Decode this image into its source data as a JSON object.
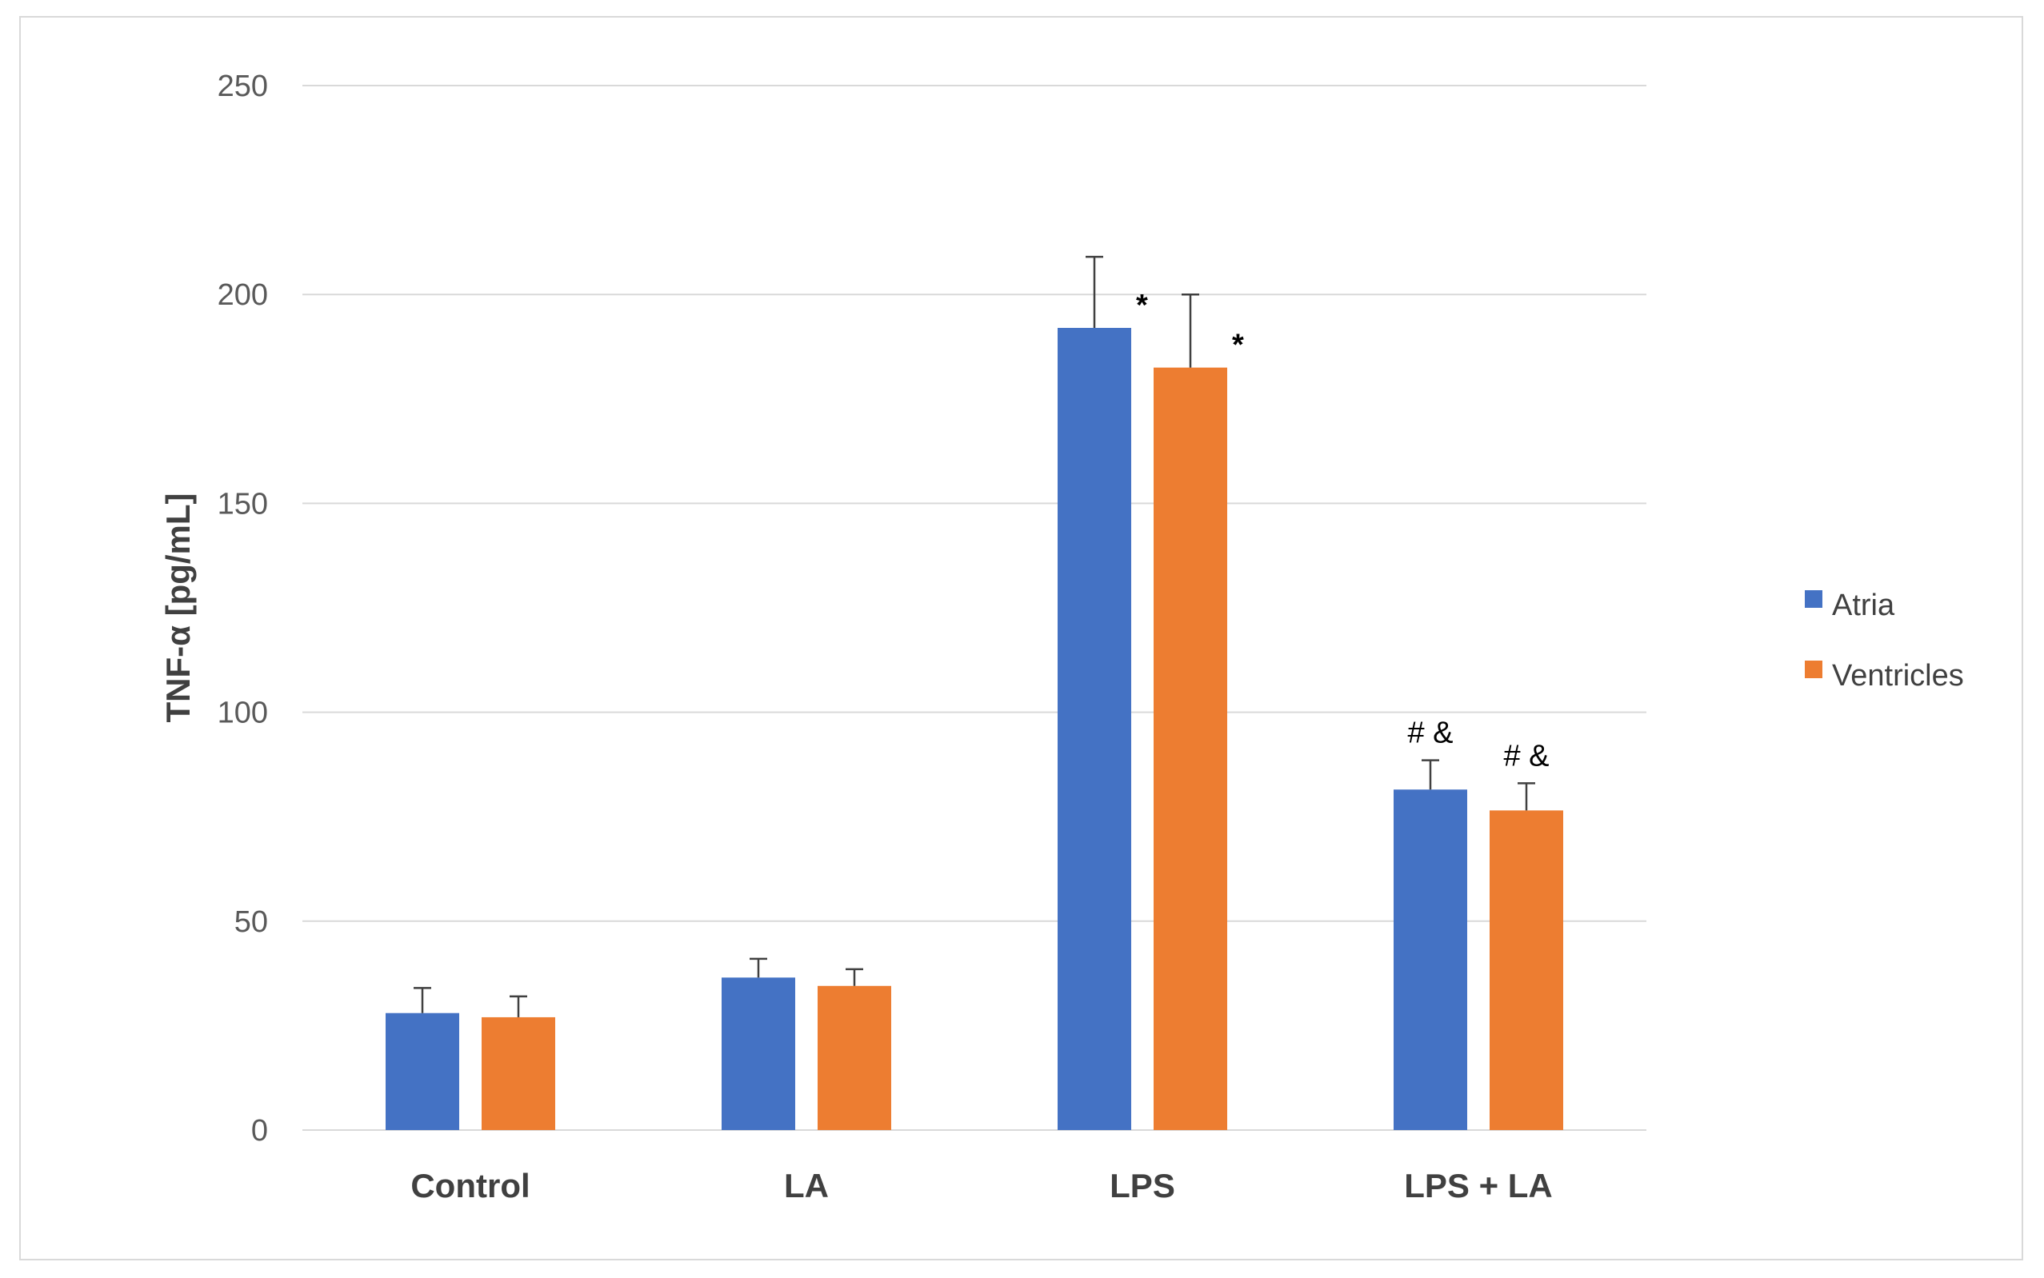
{
  "chart_data": {
    "type": "bar",
    "title": "",
    "xlabel": "",
    "ylabel": "TNF-α [pg/mL]",
    "ylim": [
      0,
      250
    ],
    "yticks": [
      0,
      50,
      100,
      150,
      200,
      250
    ],
    "grid": true,
    "legend_position": "right",
    "categories": [
      "Control",
      "LA",
      "LPS",
      "LPS + LA"
    ],
    "series": [
      {
        "name": "Atria",
        "color": "#4472c4",
        "values": [
          28,
          36.5,
          192,
          81.5
        ],
        "errors": [
          6,
          4.5,
          17,
          7
        ],
        "annotations": [
          "",
          "",
          "*",
          "# &"
        ]
      },
      {
        "name": "Ventricles",
        "color": "#ed7d31",
        "values": [
          27,
          34.5,
          182.5,
          76.5
        ],
        "errors": [
          5,
          4,
          17.5,
          6.5
        ],
        "annotations": [
          "",
          "",
          "*",
          "# &"
        ]
      }
    ]
  }
}
